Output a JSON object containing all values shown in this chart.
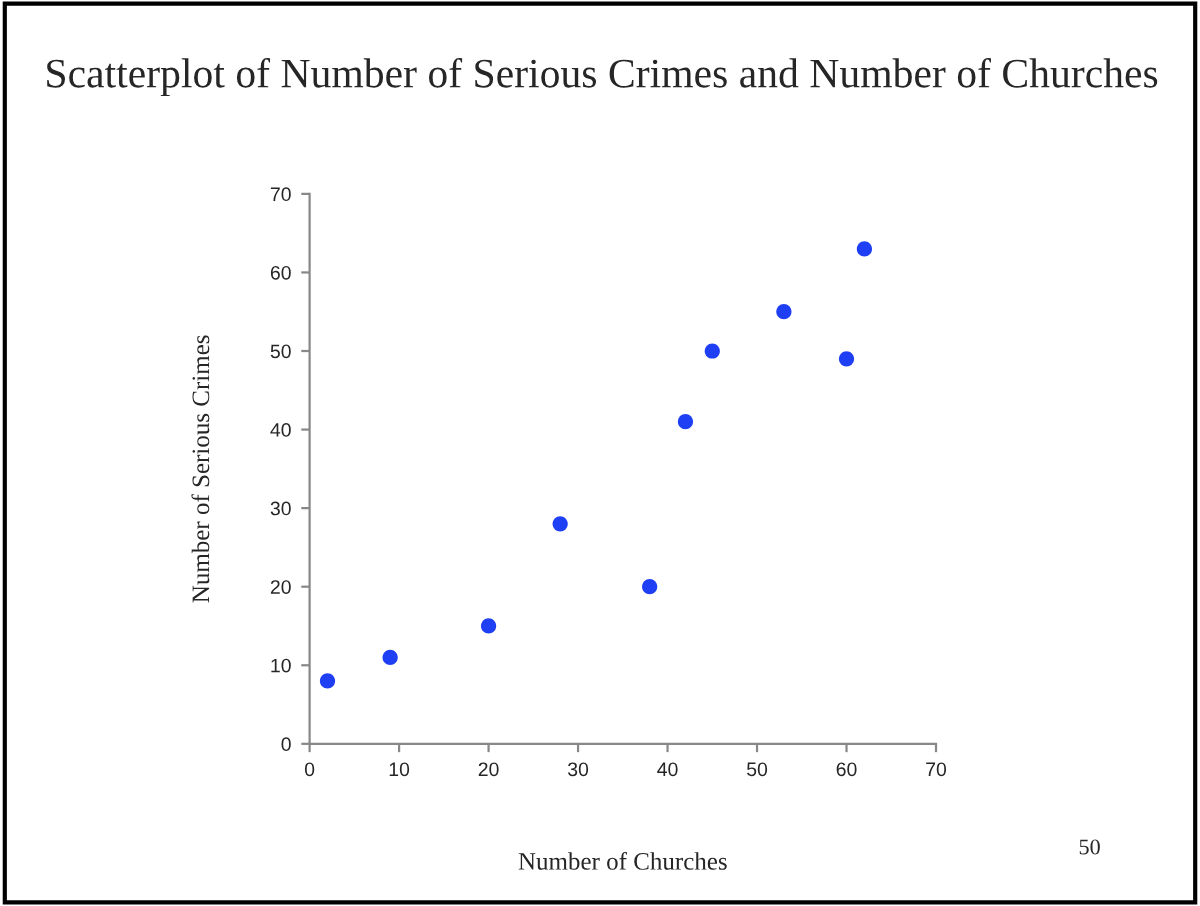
{
  "chart_data": {
    "type": "scatter",
    "title": "Scatterplot of Number of Serious Crimes and Number of Churches",
    "xlabel": "Number of Churches",
    "ylabel": "Number of Serious Crimes",
    "x": [
      2,
      9,
      20,
      28,
      38,
      42,
      45,
      53,
      60,
      62
    ],
    "series": [
      {
        "color": "#1f3ff5",
        "values": [
          8,
          11,
          15,
          28,
          20,
          41,
          50,
          55,
          49,
          63
        ]
      }
    ],
    "xlim": [
      0,
      70
    ],
    "xticks": [
      0,
      10,
      20,
      30,
      40,
      50,
      60,
      70
    ],
    "ylim": [
      0,
      70
    ],
    "yticks": [
      0,
      10,
      20,
      30,
      40,
      50,
      60,
      70
    ],
    "marker": "circle",
    "grid": false,
    "annotations": [
      "50"
    ]
  }
}
